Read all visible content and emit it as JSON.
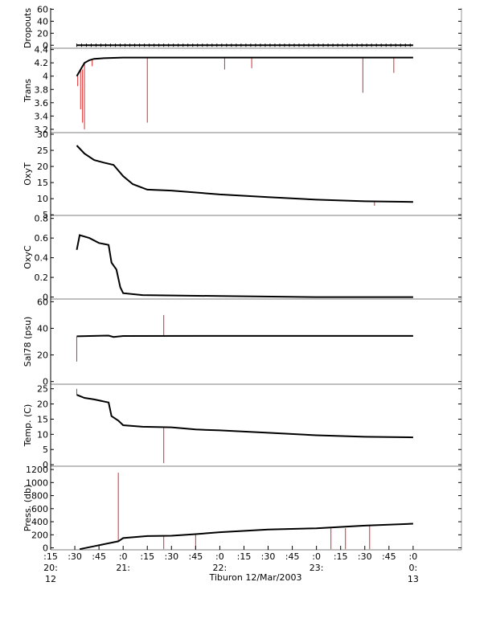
{
  "footer": {
    "caption": "Tiburon 12/Mar/2003"
  },
  "time_axis": {
    "ticks": [
      {
        "t": 20.25,
        "lines": [
          ":15",
          "20:",
          "12"
        ]
      },
      {
        "t": 20.5,
        "lines": [
          ":30"
        ]
      },
      {
        "t": 20.75,
        "lines": [
          ":45"
        ]
      },
      {
        "t": 21.0,
        "lines": [
          ":0",
          "21:"
        ]
      },
      {
        "t": 21.25,
        "lines": [
          ":15"
        ]
      },
      {
        "t": 21.5,
        "lines": [
          ":30"
        ]
      },
      {
        "t": 21.75,
        "lines": [
          ":45"
        ]
      },
      {
        "t": 22.0,
        "lines": [
          ":0",
          "22:"
        ]
      },
      {
        "t": 22.25,
        "lines": [
          ":15"
        ]
      },
      {
        "t": 22.5,
        "lines": [
          ":30"
        ]
      },
      {
        "t": 22.75,
        "lines": [
          ":45"
        ]
      },
      {
        "t": 23.0,
        "lines": [
          ":0",
          "23:"
        ]
      },
      {
        "t": 23.25,
        "lines": [
          ":15"
        ]
      },
      {
        "t": 23.5,
        "lines": [
          ":30"
        ]
      },
      {
        "t": 23.75,
        "lines": [
          ":45"
        ]
      },
      {
        "t": 24.0,
        "lines": [
          ":0",
          "0:",
          "13"
        ]
      }
    ]
  },
  "colors": {
    "series": "#000000",
    "raw_spikes": "#dd2a2a",
    "axis": "#000000",
    "grid_right": "#999999"
  },
  "chart_data": [
    {
      "type": "line",
      "ylabel": "Dropouts",
      "ylim": [
        -5,
        62
      ],
      "yticks": [
        0,
        20,
        40,
        60
      ],
      "series": [
        {
          "points": [
            [
              20.52,
              0
            ],
            [
              24.0,
              0
            ]
          ]
        }
      ],
      "spikes": []
    },
    {
      "type": "line",
      "ylabel": "Trans",
      "ylim": [
        3.15,
        4.42
      ],
      "yticks": [
        3.2,
        3.4,
        3.6,
        3.8,
        4.0,
        4.2,
        4.4
      ],
      "series": [
        {
          "points": [
            [
              20.52,
              4.0
            ],
            [
              20.54,
              4.05
            ],
            [
              20.56,
              4.1
            ],
            [
              20.6,
              4.2
            ],
            [
              20.65,
              4.24
            ],
            [
              20.7,
              4.26
            ],
            [
              20.8,
              4.27
            ],
            [
              21.0,
              4.28
            ],
            [
              22.0,
              4.28
            ],
            [
              23.0,
              4.28
            ],
            [
              24.0,
              4.28
            ]
          ]
        }
      ],
      "spikes": [
        [
          20.53,
          3.85
        ],
        [
          20.56,
          3.5
        ],
        [
          20.58,
          3.3
        ],
        [
          20.6,
          3.2
        ],
        [
          20.68,
          4.15
        ],
        [
          21.25,
          3.3
        ],
        [
          22.05,
          4.1
        ],
        [
          22.33,
          4.12
        ],
        [
          23.48,
          3.75
        ],
        [
          23.8,
          4.05
        ]
      ]
    },
    {
      "type": "line",
      "ylabel": "OxyT",
      "ylim": [
        4.8,
        30.5
      ],
      "yticks": [
        5,
        10,
        15,
        20,
        25,
        30
      ],
      "series": [
        {
          "points": [
            [
              20.52,
              26.5
            ],
            [
              20.6,
              24.0
            ],
            [
              20.7,
              22.0
            ],
            [
              20.8,
              21.2
            ],
            [
              20.9,
              20.5
            ],
            [
              21.0,
              17.0
            ],
            [
              21.1,
              14.5
            ],
            [
              21.25,
              12.8
            ],
            [
              21.5,
              12.5
            ],
            [
              22.0,
              11.3
            ],
            [
              22.5,
              10.5
            ],
            [
              23.0,
              9.7
            ],
            [
              23.5,
              9.2
            ],
            [
              24.0,
              9.0
            ]
          ]
        }
      ],
      "spikes": [
        [
          23.6,
          7.8
        ]
      ]
    },
    {
      "type": "line",
      "ylabel": "OxyC",
      "ylim": [
        -0.02,
        0.83
      ],
      "yticks": [
        0.0,
        0.2,
        0.4,
        0.6,
        0.8
      ],
      "series": [
        {
          "points": [
            [
              20.52,
              0.48
            ],
            [
              20.55,
              0.63
            ],
            [
              20.65,
              0.6
            ],
            [
              20.75,
              0.55
            ],
            [
              20.85,
              0.53
            ],
            [
              20.88,
              0.35
            ],
            [
              20.93,
              0.28
            ],
            [
              20.97,
              0.1
            ],
            [
              21.0,
              0.04
            ],
            [
              21.2,
              0.02
            ],
            [
              22.0,
              0.01
            ],
            [
              23.0,
              0.0
            ],
            [
              24.0,
              0.0
            ]
          ]
        }
      ],
      "spikes": []
    },
    {
      "type": "line",
      "ylabel": "Sal78 (psu)",
      "ylim": [
        -2,
        62
      ],
      "yticks": [
        0,
        20,
        40,
        60
      ],
      "series": [
        {
          "points": [
            [
              20.52,
              34
            ],
            [
              20.85,
              34.5
            ],
            [
              20.9,
              33.5
            ],
            [
              21.0,
              34.2
            ],
            [
              22.0,
              34.3
            ],
            [
              23.0,
              34.3
            ],
            [
              24.0,
              34.3
            ]
          ]
        }
      ],
      "spikes": [
        [
          20.52,
          15
        ],
        [
          21.42,
          50
        ]
      ]
    },
    {
      "type": "line",
      "ylabel": "Temp. (C)",
      "ylim": [
        -0.5,
        26.5
      ],
      "yticks": [
        0,
        5,
        10,
        15,
        20,
        25
      ],
      "series": [
        {
          "points": [
            [
              20.52,
              23.0
            ],
            [
              20.6,
              22.0
            ],
            [
              20.7,
              21.5
            ],
            [
              20.85,
              20.5
            ],
            [
              20.88,
              16.0
            ],
            [
              20.95,
              14.5
            ],
            [
              21.0,
              13.0
            ],
            [
              21.2,
              12.5
            ],
            [
              21.5,
              12.3
            ],
            [
              21.75,
              11.6
            ],
            [
              22.0,
              11.3
            ],
            [
              22.5,
              10.5
            ],
            [
              23.0,
              9.7
            ],
            [
              23.5,
              9.2
            ],
            [
              24.0,
              9.0
            ]
          ]
        }
      ],
      "spikes": [
        [
          20.52,
          25
        ],
        [
          21.42,
          0.5
        ]
      ]
    },
    {
      "type": "line",
      "ylabel": "Press. (db)",
      "ylim": [
        -30,
        1250
      ],
      "yticks": [
        0,
        200,
        400,
        600,
        800,
        1000,
        1200
      ],
      "series": [
        {
          "points": [
            [
              20.55,
              -20
            ],
            [
              20.75,
              40
            ],
            [
              20.95,
              100
            ],
            [
              21.0,
              150
            ],
            [
              21.25,
              180
            ],
            [
              21.5,
              185
            ],
            [
              21.75,
              210
            ],
            [
              22.0,
              240
            ],
            [
              22.5,
              280
            ],
            [
              23.0,
              300
            ],
            [
              23.5,
              340
            ],
            [
              24.0,
              370
            ]
          ]
        }
      ],
      "spikes": [
        [
          20.95,
          1150
        ],
        [
          21.42,
          -20
        ],
        [
          21.75,
          -20
        ],
        [
          23.15,
          -20
        ],
        [
          23.3,
          -20
        ],
        [
          23.55,
          -20
        ]
      ]
    }
  ]
}
